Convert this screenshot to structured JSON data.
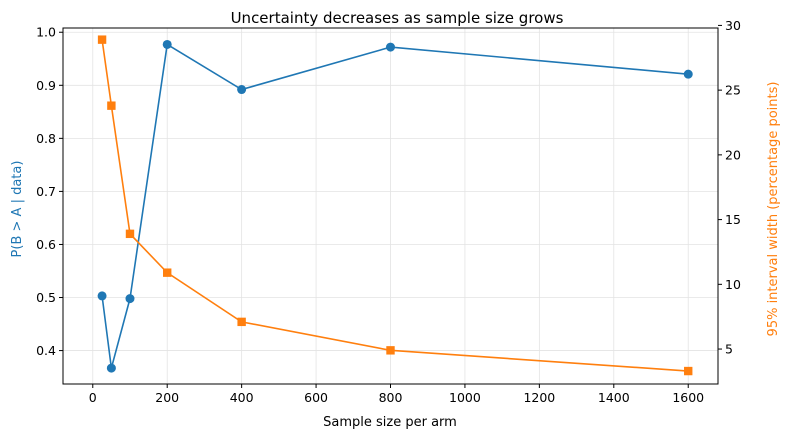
{
  "chart_data": {
    "type": "line",
    "title": "Uncertainty decreases as sample size grows",
    "xlabel": "Sample size per arm",
    "ylabel_left": "P(B > A | data)",
    "ylabel_right": "95% interval width (percentage points)",
    "xlim": [
      -80,
      1680
    ],
    "ylim_left": [
      0.337,
      1.008
    ],
    "ylim_right": [
      2.3,
      29.8
    ],
    "x_ticks": [
      0,
      200,
      400,
      600,
      800,
      1000,
      1200,
      1400,
      1600
    ],
    "y_left_ticks": [
      "0.4",
      "0.5",
      "0.6",
      "0.7",
      "0.8",
      "0.9",
      "1.0"
    ],
    "y_right_ticks": [
      "5",
      "10",
      "15",
      "20",
      "25",
      "30"
    ],
    "grid": true,
    "x": [
      25,
      50,
      100,
      200,
      400,
      800,
      1600
    ],
    "series": [
      {
        "axis": "left",
        "marker": "circle",
        "color": "#1f77b4",
        "values": [
          0.503,
          0.367,
          0.498,
          0.977,
          0.892,
          0.972,
          0.921
        ]
      },
      {
        "axis": "right",
        "marker": "square",
        "color": "#ff7f0e",
        "values": [
          28.9,
          23.8,
          13.9,
          10.9,
          7.1,
          4.9,
          3.3
        ]
      }
    ]
  }
}
